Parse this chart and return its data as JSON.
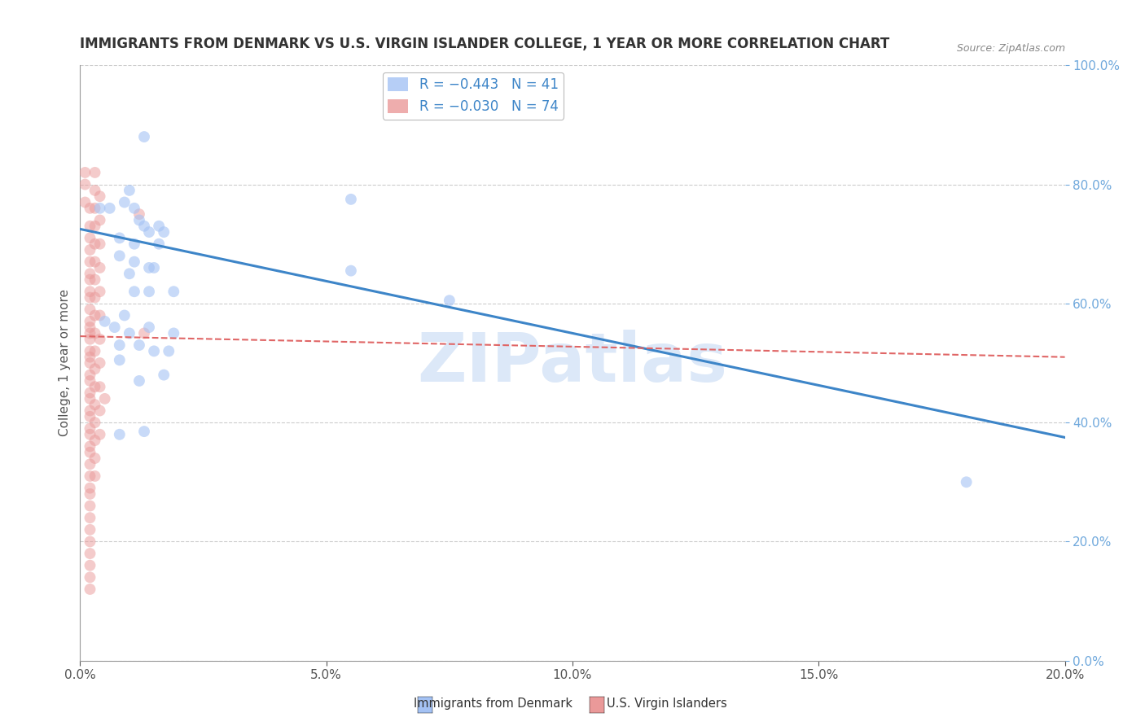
{
  "title": "IMMIGRANTS FROM DENMARK VS U.S. VIRGIN ISLANDER COLLEGE, 1 YEAR OR MORE CORRELATION CHART",
  "source": "Source: ZipAtlas.com",
  "ylabel": "College, 1 year or more",
  "watermark": "ZIPatlas",
  "xlim": [
    0.0,
    0.2
  ],
  "ylim": [
    0.0,
    1.0
  ],
  "blue_R": -0.443,
  "blue_N": 41,
  "pink_R": -0.03,
  "pink_N": 74,
  "blue_color": "#a4c2f4",
  "pink_color": "#ea9999",
  "blue_line_color": "#3d85c8",
  "pink_line_color": "#e06666",
  "blue_scatter": [
    [
      0.004,
      0.76
    ],
    [
      0.006,
      0.76
    ],
    [
      0.013,
      0.88
    ],
    [
      0.01,
      0.79
    ],
    [
      0.009,
      0.77
    ],
    [
      0.011,
      0.76
    ],
    [
      0.012,
      0.74
    ],
    [
      0.013,
      0.73
    ],
    [
      0.016,
      0.73
    ],
    [
      0.017,
      0.72
    ],
    [
      0.008,
      0.71
    ],
    [
      0.011,
      0.7
    ],
    [
      0.014,
      0.72
    ],
    [
      0.016,
      0.7
    ],
    [
      0.008,
      0.68
    ],
    [
      0.011,
      0.67
    ],
    [
      0.01,
      0.65
    ],
    [
      0.014,
      0.66
    ],
    [
      0.015,
      0.66
    ],
    [
      0.007,
      0.56
    ],
    [
      0.011,
      0.62
    ],
    [
      0.014,
      0.62
    ],
    [
      0.019,
      0.62
    ],
    [
      0.005,
      0.57
    ],
    [
      0.009,
      0.58
    ],
    [
      0.01,
      0.55
    ],
    [
      0.014,
      0.56
    ],
    [
      0.019,
      0.55
    ],
    [
      0.008,
      0.53
    ],
    [
      0.012,
      0.53
    ],
    [
      0.008,
      0.505
    ],
    [
      0.015,
      0.52
    ],
    [
      0.018,
      0.52
    ],
    [
      0.012,
      0.47
    ],
    [
      0.017,
      0.48
    ],
    [
      0.008,
      0.38
    ],
    [
      0.013,
      0.385
    ],
    [
      0.055,
      0.775
    ],
    [
      0.055,
      0.655
    ],
    [
      0.075,
      0.605
    ],
    [
      0.18,
      0.3
    ]
  ],
  "pink_scatter": [
    [
      0.001,
      0.82
    ],
    [
      0.001,
      0.8
    ],
    [
      0.001,
      0.77
    ],
    [
      0.002,
      0.76
    ],
    [
      0.002,
      0.73
    ],
    [
      0.002,
      0.71
    ],
    [
      0.002,
      0.69
    ],
    [
      0.002,
      0.67
    ],
    [
      0.002,
      0.65
    ],
    [
      0.002,
      0.64
    ],
    [
      0.002,
      0.62
    ],
    [
      0.002,
      0.61
    ],
    [
      0.002,
      0.59
    ],
    [
      0.002,
      0.57
    ],
    [
      0.002,
      0.56
    ],
    [
      0.002,
      0.55
    ],
    [
      0.002,
      0.54
    ],
    [
      0.002,
      0.52
    ],
    [
      0.002,
      0.51
    ],
    [
      0.002,
      0.5
    ],
    [
      0.002,
      0.48
    ],
    [
      0.002,
      0.47
    ],
    [
      0.002,
      0.45
    ],
    [
      0.002,
      0.44
    ],
    [
      0.002,
      0.42
    ],
    [
      0.002,
      0.41
    ],
    [
      0.002,
      0.39
    ],
    [
      0.002,
      0.38
    ],
    [
      0.002,
      0.36
    ],
    [
      0.002,
      0.35
    ],
    [
      0.002,
      0.33
    ],
    [
      0.002,
      0.31
    ],
    [
      0.002,
      0.29
    ],
    [
      0.002,
      0.28
    ],
    [
      0.002,
      0.26
    ],
    [
      0.002,
      0.24
    ],
    [
      0.002,
      0.22
    ],
    [
      0.002,
      0.2
    ],
    [
      0.002,
      0.18
    ],
    [
      0.002,
      0.16
    ],
    [
      0.002,
      0.14
    ],
    [
      0.002,
      0.12
    ],
    [
      0.003,
      0.82
    ],
    [
      0.003,
      0.79
    ],
    [
      0.003,
      0.76
    ],
    [
      0.003,
      0.73
    ],
    [
      0.003,
      0.7
    ],
    [
      0.003,
      0.67
    ],
    [
      0.003,
      0.64
    ],
    [
      0.003,
      0.61
    ],
    [
      0.003,
      0.58
    ],
    [
      0.003,
      0.55
    ],
    [
      0.003,
      0.52
    ],
    [
      0.003,
      0.49
    ],
    [
      0.003,
      0.46
    ],
    [
      0.003,
      0.43
    ],
    [
      0.003,
      0.4
    ],
    [
      0.003,
      0.37
    ],
    [
      0.003,
      0.34
    ],
    [
      0.003,
      0.31
    ],
    [
      0.004,
      0.78
    ],
    [
      0.004,
      0.74
    ],
    [
      0.004,
      0.7
    ],
    [
      0.004,
      0.66
    ],
    [
      0.004,
      0.62
    ],
    [
      0.004,
      0.58
    ],
    [
      0.004,
      0.54
    ],
    [
      0.004,
      0.5
    ],
    [
      0.004,
      0.46
    ],
    [
      0.004,
      0.42
    ],
    [
      0.004,
      0.38
    ],
    [
      0.005,
      0.44
    ],
    [
      0.012,
      0.75
    ],
    [
      0.013,
      0.55
    ]
  ],
  "blue_trend_x": [
    0.0,
    0.2
  ],
  "blue_trend_y": [
    0.725,
    0.375
  ],
  "pink_trend_x": [
    0.0,
    0.2
  ],
  "pink_trend_y": [
    0.545,
    0.51
  ],
  "legend_label_blue": "R = −0.443   N = 41",
  "legend_label_pink": "R = −0.030   N = 74",
  "background_color": "#ffffff",
  "grid_color": "#cccccc",
  "axis_color": "#cccccc",
  "watermark_color": "#dce8f8",
  "right_yaxis_color": "#6fa8dc",
  "title_fontsize": 12,
  "label_fontsize": 11,
  "tick_fontsize": 11,
  "legend_fontsize": 12,
  "watermark_fontsize": 60
}
